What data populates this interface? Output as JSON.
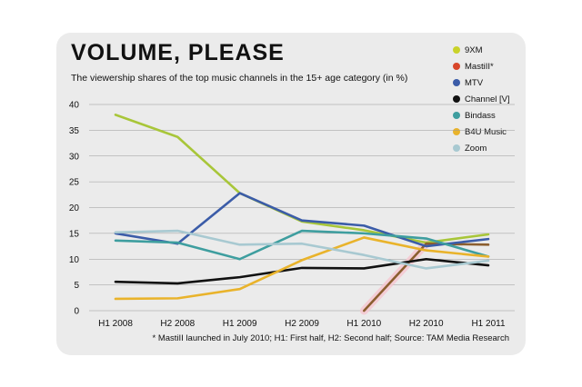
{
  "chart_data": {
    "type": "line",
    "title": "VOLUME, PLEASE",
    "subtitle": "The viewership shares of the top music channels in the 15+ age category (in %)",
    "footnote": "* MastiII launched in July 2010; H1: First half, H2: Second half; Source: TAM Media Research",
    "categories": [
      "H1 2008",
      "H2 2008",
      "H1 2009",
      "H2 2009",
      "H1 2010",
      "H2 2010",
      "H1 2011"
    ],
    "ylim": [
      0,
      40
    ],
    "yticks": [
      "0",
      "5",
      "10",
      "15",
      "20",
      "25",
      "30",
      "35",
      "40"
    ],
    "grid": true,
    "legend_position": "right",
    "series": [
      {
        "name": "9XM",
        "color": "#a8c639",
        "values": [
          38,
          33.7,
          22.8,
          17.3,
          15.6,
          13.2,
          14.8
        ]
      },
      {
        "name": "MastiII*",
        "color": "#8b5e2f",
        "values": [
          null,
          null,
          null,
          null,
          0,
          13,
          12.8
        ]
      },
      {
        "name": "MTV",
        "color": "#3b5ca8",
        "values": [
          15,
          13,
          22.8,
          17.5,
          16.5,
          12.5,
          13.9
        ]
      },
      {
        "name": "Channel [V]",
        "color": "#111111",
        "values": [
          5.6,
          5.3,
          6.5,
          8.3,
          8.2,
          10,
          8.8
        ]
      },
      {
        "name": "Bindass",
        "color": "#3e9e9f",
        "values": [
          13.6,
          13.2,
          10,
          15.5,
          15,
          14,
          10.5
        ]
      },
      {
        "name": "B4U Music",
        "color": "#e9b32b",
        "values": [
          2.3,
          2.4,
          4.2,
          9.8,
          14.2,
          11.7,
          10.5
        ]
      },
      {
        "name": "Zoom",
        "color": "#a8c9d1",
        "values": [
          15.2,
          15.5,
          12.8,
          13,
          10.8,
          8.2,
          9.7
        ]
      }
    ],
    "legend": [
      {
        "name": "9XM",
        "color": "#c9d22a"
      },
      {
        "name": "MastiII*",
        "color": "#d8462a"
      },
      {
        "name": "MTV",
        "color": "#3b5ca8"
      },
      {
        "name": "Channel [V]",
        "color": "#111111"
      },
      {
        "name": "Bindass",
        "color": "#3e9e9f"
      },
      {
        "name": "B4U Music",
        "color": "#e9b32b"
      },
      {
        "name": "Zoom",
        "color": "#a8c9d1"
      }
    ]
  }
}
